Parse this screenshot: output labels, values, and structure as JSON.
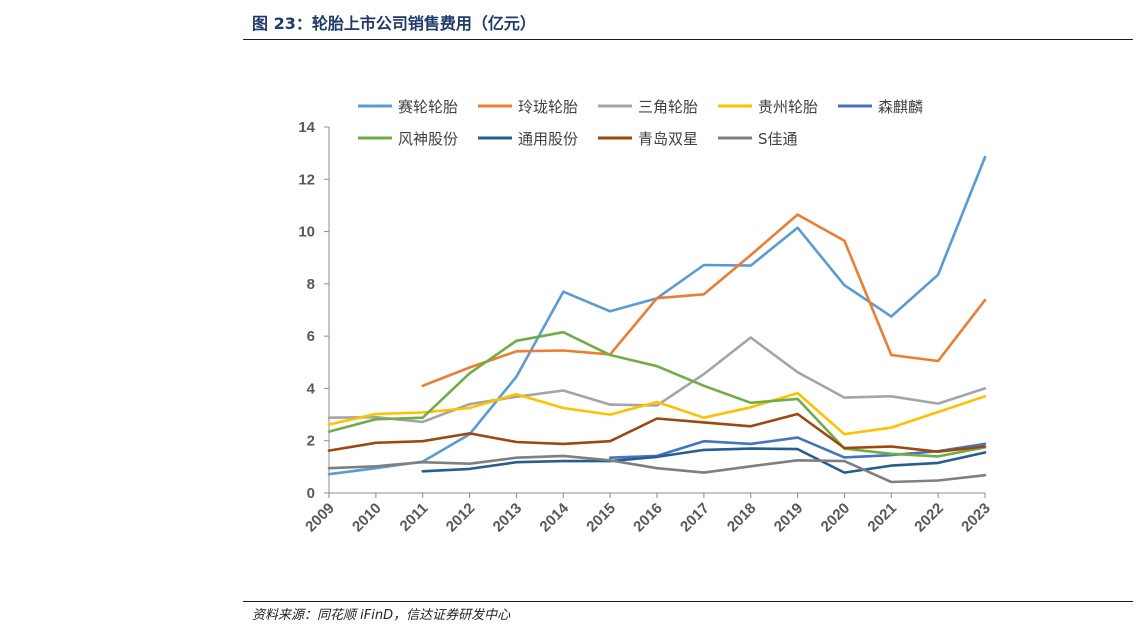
{
  "header": {
    "title": "图 23：轮胎上市公司销售费用（亿元）"
  },
  "footer": {
    "source": "资料来源：同花顺 iFinD，信达证券研发中心"
  },
  "chart_data": {
    "type": "line",
    "title": "",
    "xlabel": "",
    "ylabel": "",
    "x": [
      "2009",
      "2010",
      "2011",
      "2012",
      "2013",
      "2014",
      "2015",
      "2016",
      "2017",
      "2018",
      "2019",
      "2020",
      "2021",
      "2022",
      "2023"
    ],
    "yticks": [
      "0",
      "2",
      "4",
      "6",
      "8",
      "10",
      "12",
      "14"
    ],
    "ylim": [
      0,
      14
    ],
    "grid": false,
    "legend_position": "top",
    "series": [
      {
        "name": "赛轮轮胎",
        "color": "#5b9bd5",
        "values": [
          0.72,
          0.95,
          1.2,
          2.25,
          4.45,
          7.7,
          6.95,
          7.45,
          8.72,
          8.7,
          10.15,
          7.95,
          6.75,
          8.35,
          12.85
        ]
      },
      {
        "name": "玲珑轮胎",
        "color": "#ed7d31",
        "values": [
          null,
          null,
          4.1,
          4.8,
          5.42,
          5.45,
          5.3,
          7.45,
          7.6,
          9.1,
          10.65,
          9.65,
          5.28,
          5.05,
          7.38
        ]
      },
      {
        "name": "三角轮胎",
        "color": "#a5a5a5",
        "values": [
          2.88,
          2.9,
          2.72,
          3.4,
          3.68,
          3.92,
          3.38,
          3.35,
          4.55,
          5.95,
          4.62,
          3.65,
          3.7,
          3.42,
          4.0
        ]
      },
      {
        "name": "贵州轮胎",
        "color": "#ffc000",
        "values": [
          2.62,
          3.02,
          3.08,
          3.25,
          3.78,
          3.25,
          3.0,
          3.48,
          2.88,
          3.28,
          3.82,
          2.25,
          2.5,
          3.1,
          3.7
        ]
      },
      {
        "name": "森麒麟",
        "color": "#4472c4",
        "values": [
          null,
          null,
          null,
          null,
          null,
          null,
          1.35,
          1.42,
          1.98,
          1.88,
          2.12,
          1.36,
          1.45,
          1.6,
          1.88
        ]
      },
      {
        "name": "风神股份",
        "color": "#70ad47",
        "values": [
          2.35,
          2.82,
          2.88,
          4.58,
          5.82,
          6.15,
          5.28,
          4.85,
          4.1,
          3.45,
          3.6,
          1.7,
          1.5,
          1.4,
          1.75
        ]
      },
      {
        "name": "通用股份",
        "color": "#255e91",
        "values": [
          null,
          null,
          0.83,
          0.92,
          1.18,
          1.22,
          1.22,
          1.38,
          1.65,
          1.7,
          1.68,
          0.78,
          1.05,
          1.15,
          1.55
        ]
      },
      {
        "name": "青岛双星",
        "color": "#9e480e",
        "values": [
          1.62,
          1.92,
          1.98,
          2.28,
          1.95,
          1.88,
          1.98,
          2.85,
          2.7,
          2.55,
          3.02,
          1.72,
          1.78,
          1.58,
          1.78
        ]
      },
      {
        "name": "S佳通",
        "color": "#7f7f7f",
        "values": [
          0.95,
          1.02,
          1.18,
          1.12,
          1.35,
          1.42,
          1.25,
          0.95,
          0.78,
          1.02,
          1.25,
          1.22,
          0.42,
          0.48,
          0.68
        ]
      }
    ]
  }
}
